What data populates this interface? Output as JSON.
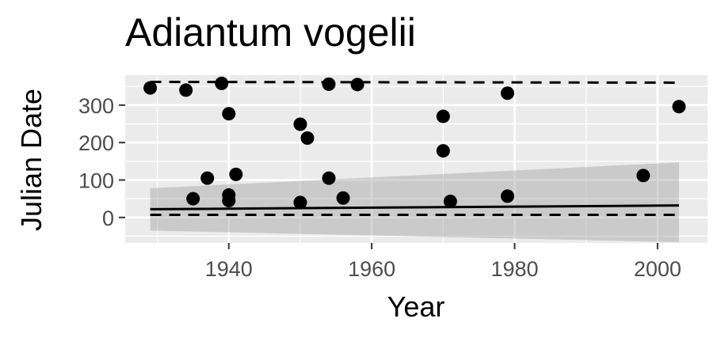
{
  "chart_data": {
    "type": "scatter",
    "title": "Adiantum vogelii",
    "xlabel": "Year",
    "ylabel": "Julian Date",
    "xlim": [
      1925.5,
      2007
    ],
    "ylim": [
      -68,
      380
    ],
    "x_ticks": [
      1940,
      1960,
      1980,
      2000
    ],
    "y_ticks": [
      0,
      100,
      200,
      300
    ],
    "grid": true,
    "points": [
      {
        "x": 1929,
        "y": 346
      },
      {
        "x": 1934,
        "y": 340
      },
      {
        "x": 1935,
        "y": 50
      },
      {
        "x": 1937,
        "y": 105
      },
      {
        "x": 1939,
        "y": 358
      },
      {
        "x": 1940,
        "y": 277
      },
      {
        "x": 1940,
        "y": 60
      },
      {
        "x": 1940,
        "y": 45
      },
      {
        "x": 1941,
        "y": 115
      },
      {
        "x": 1950,
        "y": 249
      },
      {
        "x": 1950,
        "y": 40
      },
      {
        "x": 1951,
        "y": 212
      },
      {
        "x": 1954,
        "y": 356
      },
      {
        "x": 1954,
        "y": 105
      },
      {
        "x": 1956,
        "y": 52
      },
      {
        "x": 1958,
        "y": 355
      },
      {
        "x": 1970,
        "y": 270
      },
      {
        "x": 1970,
        "y": 178
      },
      {
        "x": 1971,
        "y": 43
      },
      {
        "x": 1979,
        "y": 332
      },
      {
        "x": 1979,
        "y": 57
      },
      {
        "x": 1998,
        "y": 112
      },
      {
        "x": 2003,
        "y": 296
      }
    ],
    "trend_line": {
      "x": [
        1929,
        2003
      ],
      "y": [
        22,
        32
      ]
    },
    "confidence_band": {
      "x": [
        1929,
        2003
      ],
      "upper": [
        78,
        147
      ],
      "lower": [
        -35,
        -66
      ]
    },
    "upper_dashed": {
      "x": [
        1929,
        2003
      ],
      "y": [
        362,
        360
      ]
    },
    "lower_dashed": {
      "x": [
        1929,
        2003
      ],
      "y": [
        7,
        7
      ]
    }
  }
}
